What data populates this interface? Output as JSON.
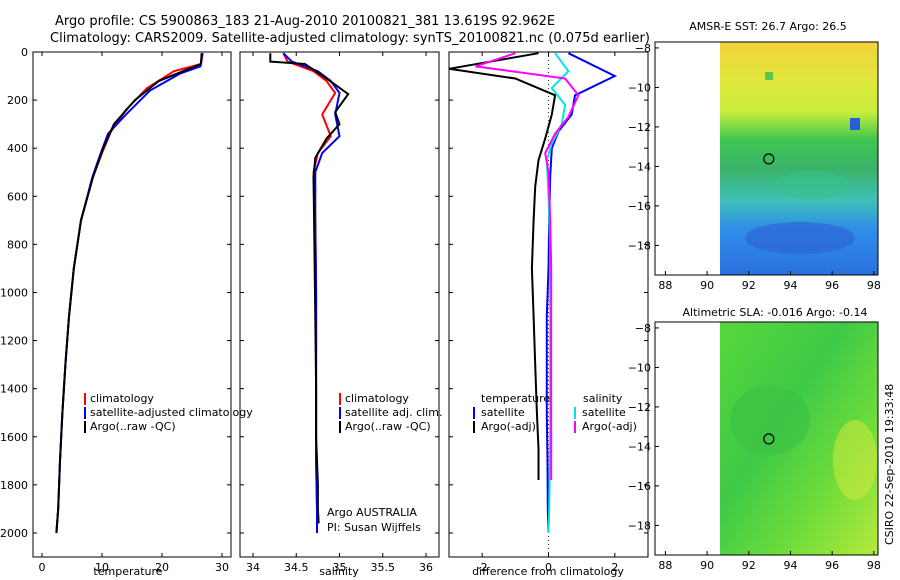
{
  "title_line1": "Argo profile: CS 5900863_183 21-Aug-2010 20100821_381 13.619S 92.962E",
  "title_line2": "Climatology: CARS2009. Satellite-adjusted climatology: synTS_20100821.nc (0.075d earlier)",
  "colors": {
    "climatology": "#ff0000",
    "satellite": "#0000ff",
    "argo": "#000000",
    "cyan": "#00e5e5",
    "magenta": "#ff00ff"
  },
  "chart_data": [
    {
      "type": "line",
      "xlabel": "temperature",
      "ylabel": "",
      "xlim": [
        -1.5,
        31.5
      ],
      "ylim": [
        2100,
        0
      ],
      "xticks": [
        0,
        10,
        20,
        30
      ],
      "yticks": [
        0,
        200,
        400,
        600,
        800,
        1000,
        1200,
        1400,
        1600,
        1800,
        2000
      ],
      "legend": [
        "climatology",
        "satellite-adjusted climatology",
        "Argo(..raw -QC)"
      ],
      "series": [
        {
          "name": "climatology",
          "color": "#ff0000",
          "x": [
            26.8,
            26.5,
            22.0,
            17.5,
            14.0,
            11.5,
            10.0,
            8.5,
            6.5,
            5.3,
            4.5,
            3.9,
            3.4,
            3.0,
            2.7,
            2.4
          ],
          "y": [
            5,
            50,
            80,
            150,
            240,
            330,
            420,
            520,
            700,
            900,
            1100,
            1300,
            1500,
            1700,
            1900,
            2000
          ]
        },
        {
          "name": "satellite-adjusted climatology",
          "color": "#0000ff",
          "x": [
            26.7,
            26.4,
            23.0,
            18.0,
            14.0,
            11.0,
            9.8,
            8.4,
            6.5,
            5.3,
            4.5,
            3.9,
            3.4,
            3.0,
            2.7,
            2.4
          ],
          "y": [
            5,
            60,
            90,
            160,
            260,
            340,
            420,
            520,
            700,
            900,
            1100,
            1300,
            1500,
            1700,
            1900,
            2000
          ]
        },
        {
          "name": "Argo(..raw -QC)",
          "color": "#000000",
          "x": [
            26.6,
            26.5,
            24.5,
            19.5,
            15.5,
            12.0,
            10.2,
            8.5,
            6.5,
            5.3,
            4.5,
            3.9,
            3.4,
            3.0,
            2.7,
            2.4
          ],
          "y": [
            5,
            50,
            70,
            120,
            200,
            300,
            400,
            520,
            700,
            900,
            1100,
            1300,
            1500,
            1700,
            1900,
            2000
          ]
        }
      ]
    },
    {
      "type": "line",
      "xlabel": "salinity",
      "ylabel": "",
      "xlim": [
        33.85,
        36.15
      ],
      "ylim": [
        2100,
        0
      ],
      "xticks": [
        34,
        34.5,
        35,
        35.5,
        36
      ],
      "yticks": [],
      "legend": [
        "climatology",
        "satellite adj. clim.",
        "Argo(..raw -QC)"
      ],
      "annotation": [
        "Argo AUSTRALIA",
        "PI: Susan Wijffels"
      ],
      "series": [
        {
          "name": "climatology",
          "color": "#ff0000",
          "x": [
            34.35,
            34.4,
            34.7,
            34.85,
            34.95,
            34.8,
            34.9,
            34.75,
            34.7,
            34.72,
            34.73,
            34.73,
            34.73,
            34.73,
            34.74,
            34.74
          ],
          "y": [
            5,
            40,
            80,
            120,
            170,
            260,
            350,
            420,
            500,
            700,
            1000,
            1300,
            1500,
            1700,
            1900,
            2000
          ]
        },
        {
          "name": "satellite adj. clim.",
          "color": "#0000ff",
          "x": [
            34.35,
            34.45,
            34.75,
            34.9,
            35.0,
            34.95,
            35.0,
            34.8,
            34.72,
            34.72,
            34.73,
            34.73,
            34.73,
            34.73,
            34.74,
            34.74
          ],
          "y": [
            5,
            40,
            80,
            120,
            170,
            260,
            350,
            420,
            500,
            700,
            1000,
            1300,
            1500,
            1700,
            1900,
            2000
          ]
        },
        {
          "name": "Argo(..raw -QC)",
          "color": "#000000",
          "x": [
            34.2,
            34.2,
            34.6,
            34.85,
            35.1,
            34.95,
            35.0,
            34.85,
            34.72,
            34.7,
            34.71,
            34.72,
            34.73,
            34.73,
            34.75,
            34.75,
            34.76
          ],
          "y": [
            5,
            40,
            50,
            110,
            175,
            250,
            300,
            360,
            440,
            520,
            800,
            1100,
            1400,
            1600,
            1800,
            1900,
            1960
          ]
        }
      ]
    },
    {
      "type": "line",
      "xlabel": "difference from climatology",
      "ylabel": "",
      "xlim": [
        -3,
        3
      ],
      "ylim": [
        2100,
        0
      ],
      "xticks": [
        -2,
        0,
        2
      ],
      "yticks": [],
      "legend_groups": [
        {
          "heading": "temperature",
          "items": [
            "satellite",
            "Argo(-adj)"
          ]
        },
        {
          "heading": "salinity",
          "items": [
            "satellite",
            "Argo(-adj)"
          ]
        }
      ],
      "series": [
        {
          "name": "satellite",
          "group": "temperature",
          "color": "#0000ff",
          "x": [
            0.6,
            2.0,
            0.8,
            0.7,
            0.3,
            0.1,
            0.05,
            0.02,
            0.0,
            -0.05,
            -0.05,
            -0.05,
            -0.05,
            -0.03,
            -0.02,
            0.0
          ],
          "y": [
            5,
            100,
            180,
            260,
            330,
            400,
            520,
            700,
            900,
            1100,
            1200,
            1300,
            1500,
            1700,
            1900,
            2000
          ]
        },
        {
          "name": "Argo(-adj)",
          "group": "temperature",
          "color": "#000000",
          "x": [
            -0.3,
            -3.0,
            -1.0,
            0.2,
            0.1,
            -0.1,
            -0.3,
            -0.4,
            -0.45,
            -0.5,
            -0.45,
            -0.4,
            -0.35,
            -0.3,
            -0.3
          ],
          "y": [
            5,
            70,
            110,
            180,
            260,
            360,
            450,
            560,
            700,
            900,
            1100,
            1300,
            1500,
            1650,
            1780
          ]
        },
        {
          "name": "satellite",
          "group": "salinity",
          "color": "#00e5e5",
          "x": [
            0.2,
            0.6,
            0.1,
            0.5,
            0.4,
            0.1,
            -0.05,
            0.0,
            0.05,
            0.05,
            0.05,
            0.05,
            0.05,
            0.03,
            0.02,
            0.0
          ],
          "y": [
            5,
            80,
            150,
            220,
            300,
            380,
            450,
            600,
            800,
            1000,
            1200,
            1400,
            1600,
            1800,
            1900,
            2000
          ]
        },
        {
          "name": "Argo(-adj)",
          "group": "salinity",
          "color": "#ff00ff",
          "x": [
            -1.0,
            -2.2,
            0.5,
            0.9,
            0.6,
            0.2,
            -0.1,
            0.0,
            0.05,
            0.08,
            0.08,
            0.08,
            0.08,
            0.08,
            0.08
          ],
          "y": [
            5,
            60,
            110,
            180,
            270,
            340,
            420,
            500,
            700,
            900,
            1100,
            1300,
            1500,
            1650,
            1780
          ]
        }
      ]
    },
    {
      "type": "heatmap",
      "title": "AMSR-E SST: 26.7 Argo: 26.5",
      "xlim": [
        87.5,
        98.2
      ],
      "ylim": [
        -19.5,
        -7.7
      ],
      "xticks": [
        88,
        90,
        92,
        94,
        96,
        98
      ],
      "yticks": [
        -8,
        -10,
        -12,
        -14,
        -16,
        -18
      ],
      "data_extent": {
        "x": [
          90,
          98
        ],
        "y": [
          -19.5,
          -7.7
        ]
      },
      "argo_position": {
        "lon": 92.962,
        "lat": -13.619
      }
    },
    {
      "type": "heatmap",
      "title": "Altimetric SLA: -0.016 Argo: -0.14",
      "xlim": [
        87.5,
        98.2
      ],
      "ylim": [
        -19.5,
        -7.7
      ],
      "xticks": [
        88,
        90,
        92,
        94,
        96,
        98
      ],
      "yticks": [
        -8,
        -10,
        -12,
        -14,
        -16,
        -18
      ],
      "data_extent": {
        "x": [
          90,
          98
        ],
        "y": [
          -19.5,
          -7.7
        ]
      },
      "argo_position": {
        "lon": 92.962,
        "lat": -13.619
      }
    }
  ],
  "side_label": "CSIRO 22-Sep-2010 19:33:48"
}
